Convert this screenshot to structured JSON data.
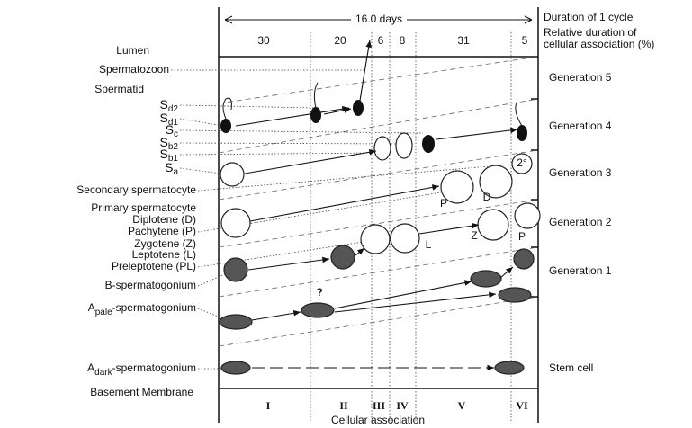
{
  "header": {
    "cycle_length": "16.0 days",
    "duration_label": "Duration of 1 cycle",
    "relative_label": [
      "Relative duration of",
      "cellular association (%)"
    ]
  },
  "percentages": [
    "30",
    "20",
    "6",
    "8",
    "31",
    "5"
  ],
  "stages": [
    "I",
    "II",
    "III",
    "IV",
    "V",
    "VI"
  ],
  "x_label": "Cellular association",
  "left_labels": [
    {
      "text": "Lumen"
    },
    {
      "text": "Spermatozoon"
    },
    {
      "text": "Spermatid"
    },
    {
      "base": "S",
      "sub": "d2"
    },
    {
      "base": "S",
      "sub": "d1"
    },
    {
      "base": "S",
      "sub": "c"
    },
    {
      "base": "S",
      "sub": "b2"
    },
    {
      "base": "S",
      "sub": "b1"
    },
    {
      "base": "S",
      "sub": "a"
    },
    {
      "text": "Secondary spermatocyte"
    },
    {
      "text": "Primary spermatocyte"
    },
    {
      "text": "Diplotene       (D)"
    },
    {
      "text": "Pachytene      (P)"
    },
    {
      "text": "Zygotene       (Z)"
    },
    {
      "text": "Leptotene      (L)"
    },
    {
      "text": "Preleptotene (PL)"
    },
    {
      "text": "B-spermatogonium"
    },
    {
      "base": "A",
      "sub": "pale",
      "rest": "-spermatogonium"
    },
    {
      "base": "A",
      "sub": "dark",
      "rest": "-spermatogonium"
    },
    {
      "text": "Basement Membrane"
    }
  ],
  "right_labels": [
    "Generation 5",
    "Generation 4",
    "Generation 3",
    "Generation 2",
    "Generation 1",
    "Stem cell"
  ],
  "cell_marks": [
    "P",
    "D",
    "L",
    "Z",
    "P",
    "2°"
  ],
  "question": "?"
}
